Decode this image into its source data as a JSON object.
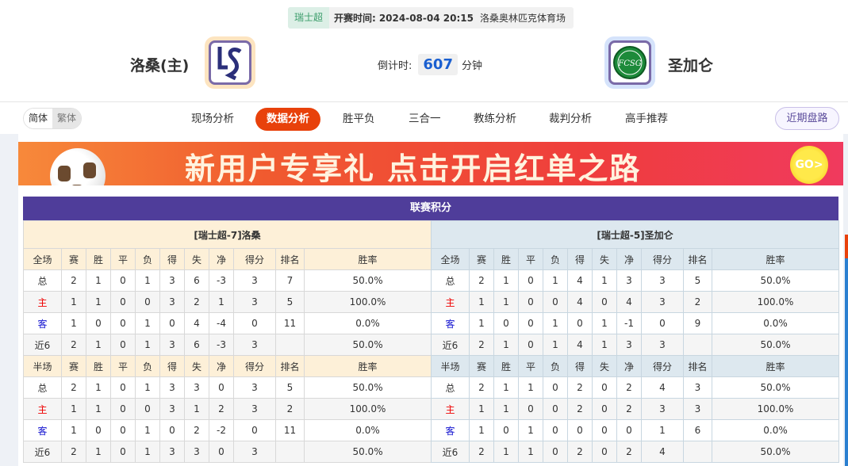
{
  "match": {
    "league": "瑞士超",
    "time_label": "开赛时间:",
    "time": "2024-08-04 20:15",
    "stadium": "洛桑奥林匹克体育场",
    "home": "洛桑(主)",
    "away": "圣加仑",
    "home_logo_text": "LS",
    "away_logo_text": "FCSG",
    "countdown_label": "倒计时:",
    "countdown": "607",
    "countdown_unit": "分钟"
  },
  "nav": {
    "lang": [
      "简体",
      "繁体"
    ],
    "tabs": [
      "现场分析",
      "数据分析",
      "胜平负",
      "三合一",
      "教练分析",
      "裁判分析",
      "高手推荐"
    ],
    "active": 1,
    "recent": "近期盘路"
  },
  "banner": {
    "text": "新用户专享礼 点击开启红单之路",
    "go": "GO>"
  },
  "table": {
    "title": "联赛积分",
    "columns_full": [
      "全场",
      "赛",
      "胜",
      "平",
      "负",
      "得",
      "失",
      "净",
      "得分",
      "排名",
      "胜率"
    ],
    "columns_half": [
      "半场",
      "赛",
      "胜",
      "平",
      "负",
      "得",
      "失",
      "净",
      "得分",
      "排名",
      "胜率"
    ],
    "home": {
      "header": "[瑞士超-7]洛桑",
      "full": [
        [
          "总",
          "2",
          "1",
          "0",
          "1",
          "3",
          "6",
          "-3",
          "3",
          "7",
          "50.0%"
        ],
        [
          "主",
          "1",
          "1",
          "0",
          "0",
          "3",
          "2",
          "1",
          "3",
          "5",
          "100.0%"
        ],
        [
          "客",
          "1",
          "0",
          "0",
          "1",
          "0",
          "4",
          "-4",
          "0",
          "11",
          "0.0%"
        ],
        [
          "近6",
          "2",
          "1",
          "0",
          "1",
          "3",
          "6",
          "-3",
          "3",
          "",
          "50.0%"
        ]
      ],
      "half": [
        [
          "总",
          "2",
          "1",
          "0",
          "1",
          "3",
          "3",
          "0",
          "3",
          "5",
          "50.0%"
        ],
        [
          "主",
          "1",
          "1",
          "0",
          "0",
          "3",
          "1",
          "2",
          "3",
          "2",
          "100.0%"
        ],
        [
          "客",
          "1",
          "0",
          "0",
          "1",
          "0",
          "2",
          "-2",
          "0",
          "11",
          "0.0%"
        ],
        [
          "近6",
          "2",
          "1",
          "0",
          "1",
          "3",
          "3",
          "0",
          "3",
          "",
          "50.0%"
        ]
      ]
    },
    "away": {
      "header": "[瑞士超-5]圣加仑",
      "full": [
        [
          "总",
          "2",
          "1",
          "0",
          "1",
          "4",
          "1",
          "3",
          "3",
          "5",
          "50.0%"
        ],
        [
          "主",
          "1",
          "1",
          "0",
          "0",
          "4",
          "0",
          "4",
          "3",
          "2",
          "100.0%"
        ],
        [
          "客",
          "1",
          "0",
          "0",
          "1",
          "0",
          "1",
          "-1",
          "0",
          "9",
          "0.0%"
        ],
        [
          "近6",
          "2",
          "1",
          "0",
          "1",
          "4",
          "1",
          "3",
          "3",
          "",
          "50.0%"
        ]
      ],
      "half": [
        [
          "总",
          "2",
          "1",
          "1",
          "0",
          "2",
          "0",
          "2",
          "4",
          "3",
          "50.0%"
        ],
        [
          "主",
          "1",
          "1",
          "0",
          "0",
          "2",
          "0",
          "2",
          "3",
          "3",
          "100.0%"
        ],
        [
          "客",
          "1",
          "0",
          "1",
          "0",
          "0",
          "0",
          "0",
          "1",
          "6",
          "0.0%"
        ],
        [
          "近6",
          "2",
          "1",
          "1",
          "0",
          "2",
          "0",
          "2",
          "4",
          "",
          "50.0%"
        ]
      ]
    }
  },
  "colors": {
    "accent": "#e8410b",
    "title_bar": "#4f3d9a",
    "home_label": "#e00000",
    "away_label": "#1515d0"
  }
}
